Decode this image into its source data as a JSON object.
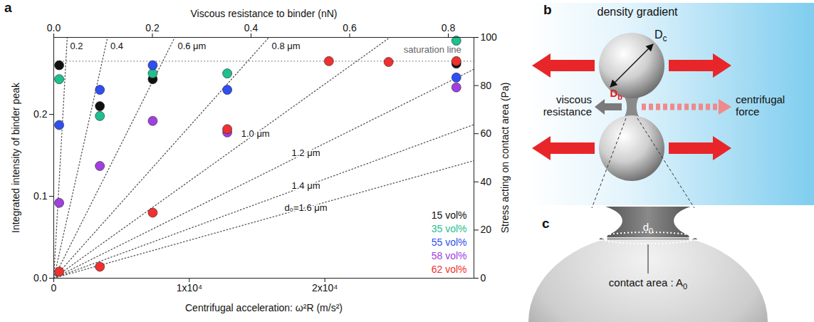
{
  "chart_data": {
    "type": "scatter",
    "panel_label": "a",
    "xlabel": "Centrifugal acceleration: ω²R (m/s²)",
    "ylabel": "Integrated intensity of binder peak",
    "x2label": "Viscous resistance to binder (nN)",
    "y2label": "Stress acting on contact area (Pa)",
    "xlim": [
      0,
      31000
    ],
    "xticks": [
      0,
      {
        "value": 10000,
        "label": "1x10⁴"
      },
      {
        "value": 20000,
        "label": "2x10⁴"
      }
    ],
    "ylim": [
      0,
      0.294
    ],
    "yticks": [
      {
        "value": 0,
        "label": "0.0"
      },
      0.1,
      0.2
    ],
    "x2lim": [
      0,
      0.852
    ],
    "x2ticks": [
      {
        "value": 0,
        "label": "0.0"
      },
      0.2,
      0.4,
      0.6,
      0.8
    ],
    "y2lim": [
      0,
      100
    ],
    "y2ticks": [
      0,
      20,
      40,
      60,
      80,
      100
    ],
    "grid": false,
    "legend": "bottom-right",
    "marker": "circle",
    "series": [
      {
        "name": "15 vol%",
        "color": "#111111",
        "x": [
          400,
          3400,
          7300,
          29700
        ],
        "values": [
          0.26,
          0.21,
          0.243,
          0.262
        ]
      },
      {
        "name": "35 vol%",
        "color": "#1fbf8f",
        "x": [
          400,
          3400,
          7300,
          12800,
          29700
        ],
        "values": [
          0.243,
          0.198,
          0.25,
          0.25,
          0.29
        ]
      },
      {
        "name": "55 vol%",
        "color": "#2f4ff0",
        "x": [
          400,
          3400,
          7300,
          12800,
          29700
        ],
        "values": [
          0.187,
          0.23,
          0.26,
          0.23,
          0.245
        ]
      },
      {
        "name": "58 vol%",
        "color": "#a040e0",
        "x": [
          400,
          3400,
          7300,
          12800,
          29700
        ],
        "values": [
          0.092,
          0.137,
          0.192,
          0.178,
          0.233
        ]
      },
      {
        "name": "62 vol%",
        "color": "#f03030",
        "x": [
          400,
          3400,
          7300,
          12800,
          20300,
          24700,
          29700
        ],
        "values": [
          0.008,
          0.014,
          0.08,
          0.182,
          0.265,
          0.264,
          0.265
        ]
      }
    ],
    "reference_lines": [
      {
        "label": "0.2",
        "x": [
          0,
          992
        ],
        "y2": [
          0,
          100
        ],
        "line_style": "dotted"
      },
      {
        "label": "0.4",
        "x": [
          0,
          3968
        ],
        "y2": [
          0,
          100
        ],
        "line_style": "dotted"
      },
      {
        "label": "0.6 μm",
        "x": [
          0,
          8928
        ],
        "y2": [
          0,
          100
        ],
        "line_style": "dotted"
      },
      {
        "label": "0.8 μm",
        "x": [
          0,
          15872
        ],
        "y2": [
          0,
          100
        ],
        "line_style": "dotted"
      },
      {
        "label": "1.0 μm",
        "x": [
          0,
          24800
        ],
        "y2": [
          0,
          100
        ],
        "line_style": "dotted"
      },
      {
        "label": "1.2 μm",
        "x": [
          0,
          31000
        ],
        "y2": [
          0,
          86.8
        ],
        "line_style": "dotted"
      },
      {
        "label": "1.4 μm",
        "x": [
          0,
          31000
        ],
        "y2": [
          0,
          63.8
        ],
        "line_style": "dotted"
      },
      {
        "label": "d₀=1.6 μm",
        "x": [
          0,
          31000
        ],
        "y2": [
          0,
          48.8
        ],
        "line_style": "dotted"
      }
    ],
    "saturation_line": {
      "label": "saturation line",
      "y": 0.265,
      "line_style": "dotted"
    }
  },
  "panels": {
    "b": {
      "letter": "b",
      "gradient_label": "density gradient",
      "left_force": "viscous resistance",
      "right_force": "centrifugal force",
      "sphere_diameter": {
        "text": "D",
        "sub": "c"
      },
      "binder_diameter": {
        "text": "D",
        "sub": "b"
      }
    },
    "c": {
      "letter": "c",
      "contact_diameter": {
        "text": "d",
        "sub": "0"
      },
      "contact_area": {
        "text": "contact area : A",
        "sub": "0"
      }
    }
  }
}
